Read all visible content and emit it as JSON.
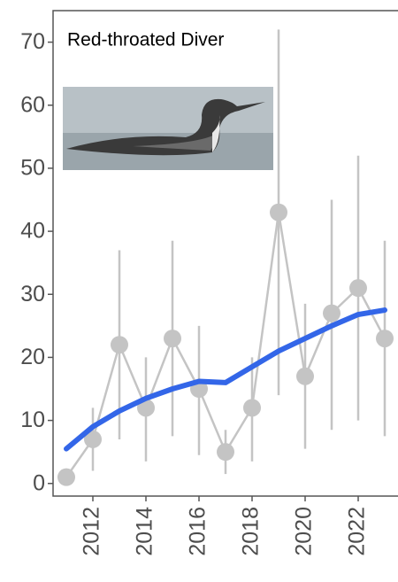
{
  "chart_data": {
    "type": "line",
    "annotation": "Red-throated Diver",
    "x": [
      2011,
      2012,
      2013,
      2014,
      2015,
      2016,
      2017,
      2018,
      2019,
      2020,
      2021,
      2022,
      2023
    ],
    "series": [
      {
        "color": "#c4c4c4",
        "values": [
          1,
          7,
          22,
          12,
          23,
          15,
          5,
          12,
          43,
          17,
          27,
          31,
          23
        ],
        "lower": [
          0.5,
          2,
          7,
          3.5,
          7.5,
          4.5,
          1.5,
          3.5,
          14,
          5.5,
          8.5,
          10,
          7.5
        ],
        "upper": [
          1.5,
          12,
          37,
          20,
          38.5,
          25,
          8.5,
          20,
          72,
          28.5,
          45,
          52,
          38.5
        ]
      },
      {
        "color": "#3366e8",
        "values": [
          5.5,
          9,
          11.5,
          13.5,
          15,
          16.2,
          16,
          18.5,
          21,
          23,
          25,
          26.8,
          27.5
        ]
      }
    ],
    "xlim": [
      2010.5,
      2023.5
    ],
    "ylim": [
      -2,
      75
    ],
    "xticks": [
      2012,
      2014,
      2016,
      2018,
      2020,
      2022
    ],
    "yticks": [
      0,
      10,
      20,
      30,
      40,
      50,
      60,
      70
    ]
  }
}
